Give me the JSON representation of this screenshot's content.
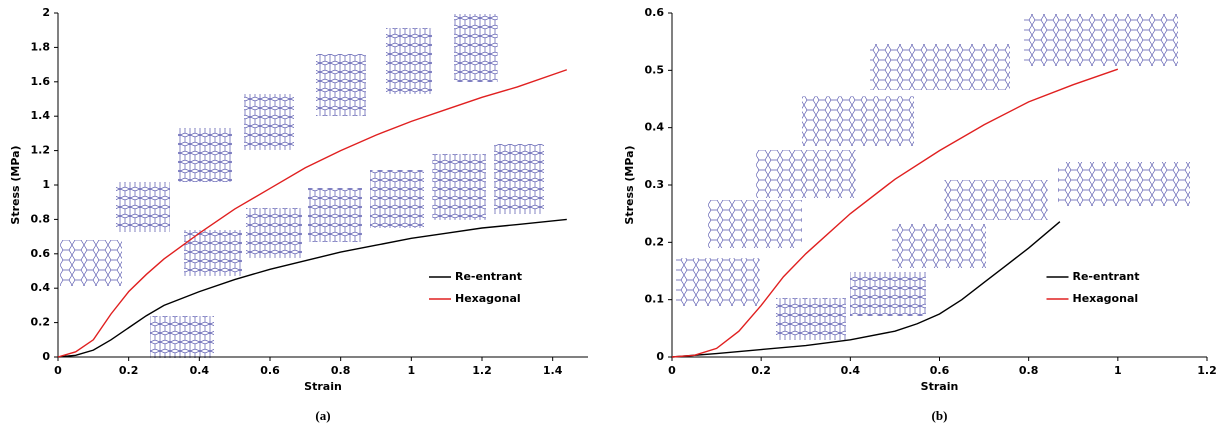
{
  "chart_data": [
    {
      "type": "line",
      "caption": "(a)",
      "x_label": "Strain",
      "y_label": "Stress (MPa)",
      "xlim": [
        0,
        1.5
      ],
      "xticks": [
        0,
        0.2,
        0.4,
        0.6,
        0.8,
        1,
        1.2,
        1.4
      ],
      "ylim": [
        0,
        2
      ],
      "yticks": [
        0,
        0.2,
        0.4,
        0.6,
        0.8,
        1,
        1.2,
        1.4,
        1.6,
        1.8,
        2
      ],
      "legend": "lower right",
      "series": [
        {
          "name": "Re-entrant",
          "color": "#000000",
          "x": [
            0,
            0.05,
            0.1,
            0.15,
            0.2,
            0.25,
            0.3,
            0.4,
            0.5,
            0.6,
            0.7,
            0.8,
            0.9,
            1.0,
            1.1,
            1.2,
            1.3,
            1.44
          ],
          "values": [
            0,
            0.01,
            0.04,
            0.1,
            0.17,
            0.24,
            0.3,
            0.38,
            0.45,
            0.51,
            0.56,
            0.61,
            0.65,
            0.69,
            0.72,
            0.75,
            0.77,
            0.8
          ]
        },
        {
          "name": "Hexagonal",
          "color": "#e02020",
          "x": [
            0,
            0.05,
            0.1,
            0.15,
            0.2,
            0.25,
            0.3,
            0.4,
            0.5,
            0.6,
            0.7,
            0.8,
            0.9,
            1.0,
            1.1,
            1.2,
            1.3,
            1.44
          ],
          "values": [
            0,
            0.03,
            0.1,
            0.25,
            0.38,
            0.48,
            0.57,
            0.72,
            0.86,
            0.98,
            1.1,
            1.2,
            1.29,
            1.37,
            1.44,
            1.51,
            1.57,
            1.67
          ]
        }
      ]
    },
    {
      "type": "line",
      "caption": "(b)",
      "x_label": "Strain",
      "y_label": "Stress (MPa)",
      "xlim": [
        0,
        1.2
      ],
      "xticks": [
        0,
        0.2,
        0.4,
        0.6,
        0.8,
        1,
        1.2
      ],
      "ylim": [
        0,
        0.6
      ],
      "yticks": [
        0,
        0.1,
        0.2,
        0.3,
        0.4,
        0.5,
        0.6
      ],
      "legend": "lower right",
      "series": [
        {
          "name": "Re-entrant",
          "color": "#000000",
          "x": [
            0,
            0.1,
            0.2,
            0.3,
            0.4,
            0.5,
            0.55,
            0.6,
            0.65,
            0.7,
            0.75,
            0.8,
            0.87
          ],
          "values": [
            0,
            0.006,
            0.013,
            0.02,
            0.03,
            0.045,
            0.058,
            0.075,
            0.1,
            0.13,
            0.16,
            0.19,
            0.236
          ]
        },
        {
          "name": "Hexagonal",
          "color": "#e02020",
          "x": [
            0,
            0.05,
            0.1,
            0.15,
            0.2,
            0.25,
            0.3,
            0.4,
            0.5,
            0.6,
            0.7,
            0.8,
            0.9,
            1.0
          ],
          "values": [
            0,
            0.003,
            0.015,
            0.045,
            0.09,
            0.14,
            0.18,
            0.25,
            0.31,
            0.36,
            0.405,
            0.445,
            0.475,
            0.502
          ]
        }
      ]
    }
  ]
}
